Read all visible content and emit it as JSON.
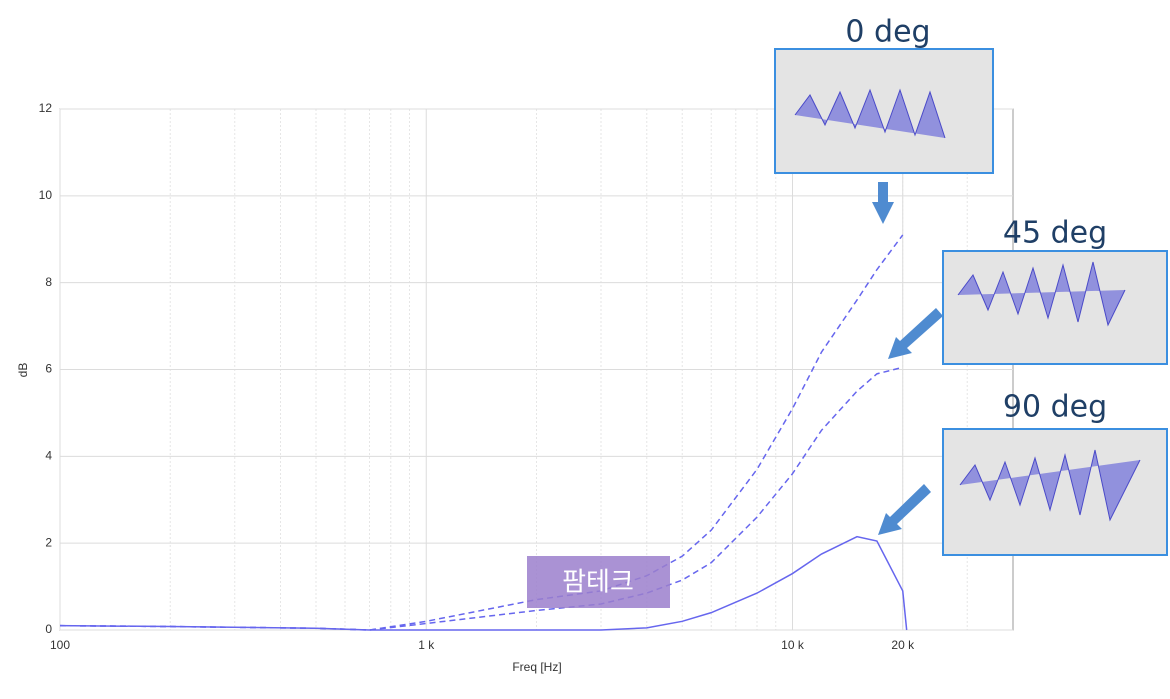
{
  "chart_data": {
    "type": "line",
    "x_label": "Freq [Hz]",
    "y_label": "dB",
    "log_x": true,
    "grid": true,
    "xlim": [
      100,
      40000
    ],
    "ylim": [
      0,
      12
    ],
    "xticks": [
      {
        "value": 100,
        "label": "100"
      },
      {
        "value": 1000,
        "label": "1 k"
      },
      {
        "value": 10000,
        "label": "10 k"
      },
      {
        "value": 20000,
        "label": "20 k"
      }
    ],
    "yticks": [
      0,
      2,
      4,
      6,
      8,
      10,
      12
    ],
    "x": [
      100,
      200,
      500,
      700,
      1000,
      2000,
      3000,
      4000,
      5000,
      6000,
      8000,
      10000,
      12000,
      15000,
      17000,
      20000,
      20500
    ],
    "series": [
      {
        "name": "0 deg",
        "color": "#6666ee",
        "dashed": true,
        "values": [
          0.1,
          0.08,
          0.04,
          0.0,
          0.2,
          0.7,
          0.9,
          1.25,
          1.7,
          2.3,
          3.7,
          5.1,
          6.4,
          7.6,
          8.3,
          9.1,
          null
        ]
      },
      {
        "name": "45 deg",
        "color": "#6666ee",
        "dashed": true,
        "values": [
          0.1,
          0.08,
          0.04,
          0.0,
          0.15,
          0.45,
          0.6,
          0.85,
          1.15,
          1.55,
          2.6,
          3.6,
          4.6,
          5.5,
          5.9,
          6.05,
          null
        ]
      },
      {
        "name": "90 deg",
        "color": "#6666ee",
        "dashed": false,
        "values": [
          0.1,
          0.08,
          0.04,
          0.0,
          0.0,
          0.0,
          0.0,
          0.05,
          0.2,
          0.4,
          0.85,
          1.3,
          1.75,
          2.15,
          2.05,
          0.9,
          0.0
        ]
      }
    ],
    "watermark": "팜테크"
  }
}
